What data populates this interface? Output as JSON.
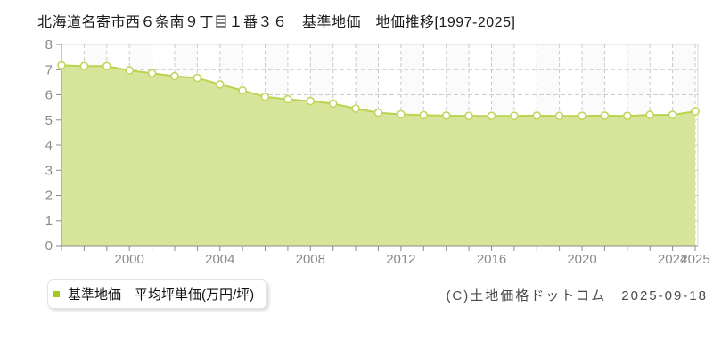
{
  "page": {
    "title": "北海道名寄市西６条南９丁目１番３６　基準地価　地価推移[1997-2025]"
  },
  "legend": {
    "label": "基準地価　平均坪単価(万円/坪)"
  },
  "footer": {
    "copyright": "(C)土地価格ドットコム　2025-09-18"
  },
  "chart_data": {
    "type": "area",
    "title": "北海道名寄市西６条南９丁目１番３６ 基準地価 地価推移[1997-2025]",
    "series": [
      {
        "name": "基準地価 平均坪単価(万円/坪)",
        "x": [
          1997,
          1998,
          1999,
          2000,
          2001,
          2002,
          2003,
          2004,
          2005,
          2006,
          2007,
          2008,
          2009,
          2010,
          2011,
          2012,
          2013,
          2014,
          2015,
          2016,
          2017,
          2018,
          2019,
          2020,
          2021,
          2022,
          2023,
          2024,
          2025
        ],
        "values": [
          7.17,
          7.14,
          7.14,
          6.97,
          6.86,
          6.74,
          6.67,
          6.41,
          6.17,
          5.92,
          5.82,
          5.75,
          5.65,
          5.45,
          5.29,
          5.22,
          5.19,
          5.17,
          5.16,
          5.16,
          5.16,
          5.17,
          5.16,
          5.16,
          5.17,
          5.16,
          5.2,
          5.2,
          5.34
        ]
      }
    ],
    "xlabel": "",
    "ylabel": "",
    "ylim": [
      0,
      8
    ],
    "y_tick_interval": 1,
    "x_tick_labels": [
      2000,
      2004,
      2008,
      2012,
      2016,
      2020,
      2024,
      2025
    ],
    "grid": "dashed",
    "legend_position": "bottom-left",
    "colors": {
      "area_fill": "#d7e59a",
      "line": "#b9d44e",
      "marker_fill": "#ffffff",
      "marker_stroke": "#c2d65e",
      "legend_marker": "#a5c922",
      "grid": "#c9c9c9",
      "axis": "#8c8c8c",
      "plot_border": "#d9d9d9",
      "tick_label": "#8a8a8a"
    }
  }
}
